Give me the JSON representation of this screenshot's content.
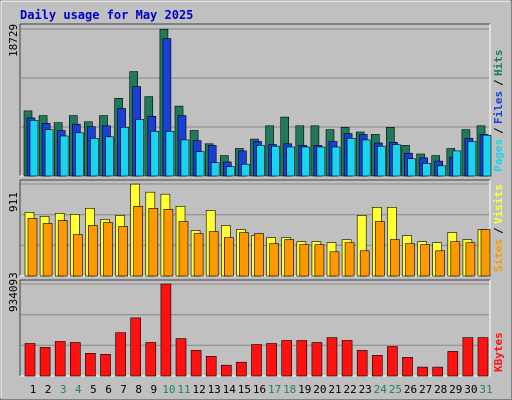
{
  "title": "Daily usage for May 2025",
  "colors": {
    "hits": "#1f7a5c",
    "files": "#1a3fd6",
    "pages": "#19d3f0",
    "visits": "#ffff33",
    "sites": "#ff9900",
    "kbytes": "#ff1111",
    "title": "#0000cc",
    "weekend": "#208060",
    "weekday": "#000000",
    "plot_bg": "#c0c0c0",
    "grid": "#888888"
  },
  "chart_data": [
    {
      "type": "bar",
      "panel": "top",
      "max_label": "18729",
      "ylim": [
        0,
        18729
      ],
      "right_labels": [
        {
          "text": "Pages",
          "color": "#19d3f0"
        },
        {
          "text": "Files",
          "color": "#1a3fd6"
        },
        {
          "text": "Hits",
          "color": "#1f7a5c"
        }
      ],
      "categories": [
        "1",
        "2",
        "3",
        "4",
        "5",
        "6",
        "7",
        "8",
        "9",
        "10",
        "11",
        "12",
        "13",
        "14",
        "15",
        "16",
        "17",
        "18",
        "19",
        "20",
        "21",
        "22",
        "23",
        "24",
        "25",
        "26",
        "27",
        "28",
        "29",
        "30",
        "31"
      ],
      "series": [
        {
          "name": "Hits",
          "values": [
            8300,
            7700,
            6800,
            7700,
            6900,
            7700,
            9900,
            13300,
            10100,
            18700,
            8900,
            5800,
            4100,
            2600,
            3500,
            4700,
            6400,
            7500,
            6400,
            6400,
            5900,
            6200,
            5600,
            5300,
            6200,
            3900,
            2800,
            2600,
            3500,
            5900,
            6400
          ]
        },
        {
          "name": "Files",
          "values": [
            7400,
            6700,
            5800,
            6600,
            6300,
            6400,
            8600,
            11400,
            7600,
            17500,
            7700,
            4500,
            3900,
            1800,
            3200,
            4400,
            4000,
            4100,
            3900,
            3900,
            4400,
            5400,
            5300,
            4200,
            4300,
            2900,
            2300,
            1900,
            2400,
            4800,
            5300
          ]
        },
        {
          "name": "Pages",
          "values": [
            7100,
            5900,
            5100,
            5500,
            4800,
            5000,
            6200,
            7200,
            5700,
            5700,
            4600,
            3100,
            1700,
            1200,
            1500,
            3900,
            3800,
            3700,
            3700,
            3700,
            3700,
            4800,
            4600,
            3800,
            4000,
            2200,
            1600,
            1300,
            3200,
            4400,
            5200
          ]
        }
      ]
    },
    {
      "type": "bar",
      "panel": "middle",
      "max_label": "911",
      "ylim": [
        0,
        911
      ],
      "right_labels": [
        {
          "text": "Sites",
          "color": "#ff9900"
        },
        {
          "text": "Visits",
          "color": "#ffff33"
        }
      ],
      "categories": [
        "1",
        "2",
        "3",
        "4",
        "5",
        "6",
        "7",
        "8",
        "9",
        "10",
        "11",
        "12",
        "13",
        "14",
        "15",
        "16",
        "17",
        "18",
        "19",
        "20",
        "21",
        "22",
        "23",
        "24",
        "25",
        "26",
        "27",
        "28",
        "29",
        "30",
        "31"
      ],
      "series": [
        {
          "name": "Visits",
          "values": [
            630,
            590,
            620,
            610,
            670,
            560,
            600,
            910,
            830,
            810,
            690,
            450,
            650,
            500,
            460,
            400,
            380,
            380,
            340,
            340,
            330,
            360,
            600,
            680,
            680,
            400,
            340,
            330,
            430,
            360,
            460
          ]
        },
        {
          "name": "Sites",
          "values": [
            570,
            520,
            550,
            410,
            500,
            530,
            490,
            690,
            670,
            660,
            540,
            420,
            440,
            380,
            430,
            420,
            320,
            360,
            310,
            310,
            240,
            330,
            250,
            540,
            360,
            320,
            310,
            250,
            340,
            330,
            460
          ]
        }
      ]
    },
    {
      "type": "bar",
      "panel": "bottom",
      "max_label": "934093",
      "ylim": [
        0,
        934093
      ],
      "right_labels": [
        {
          "text": "KBytes",
          "color": "#ff1111"
        }
      ],
      "categories": [
        "1",
        "2",
        "3",
        "4",
        "5",
        "6",
        "7",
        "8",
        "9",
        "10",
        "11",
        "12",
        "13",
        "14",
        "15",
        "16",
        "17",
        "18",
        "19",
        "20",
        "21",
        "22",
        "23",
        "24",
        "25",
        "26",
        "27",
        "28",
        "29",
        "30",
        "31"
      ],
      "series": [
        {
          "name": "KBytes",
          "values": [
            330000,
            290000,
            350000,
            340000,
            230000,
            220000,
            440000,
            590000,
            340000,
            934093,
            380000,
            260000,
            200000,
            110000,
            140000,
            320000,
            330000,
            360000,
            360000,
            340000,
            390000,
            360000,
            260000,
            210000,
            300000,
            190000,
            90000,
            90000,
            250000,
            390000,
            390000
          ]
        }
      ]
    }
  ],
  "x_labels": [
    {
      "day": "1",
      "weekend": false
    },
    {
      "day": "2",
      "weekend": false
    },
    {
      "day": "3",
      "weekend": true
    },
    {
      "day": "4",
      "weekend": true
    },
    {
      "day": "5",
      "weekend": false
    },
    {
      "day": "6",
      "weekend": false
    },
    {
      "day": "7",
      "weekend": false
    },
    {
      "day": "8",
      "weekend": false
    },
    {
      "day": "9",
      "weekend": false
    },
    {
      "day": "10",
      "weekend": true
    },
    {
      "day": "11",
      "weekend": true
    },
    {
      "day": "12",
      "weekend": false
    },
    {
      "day": "13",
      "weekend": false
    },
    {
      "day": "14",
      "weekend": false
    },
    {
      "day": "15",
      "weekend": false
    },
    {
      "day": "16",
      "weekend": false
    },
    {
      "day": "17",
      "weekend": true
    },
    {
      "day": "18",
      "weekend": true
    },
    {
      "day": "19",
      "weekend": false
    },
    {
      "day": "20",
      "weekend": false
    },
    {
      "day": "21",
      "weekend": false
    },
    {
      "day": "22",
      "weekend": false
    },
    {
      "day": "23",
      "weekend": false
    },
    {
      "day": "24",
      "weekend": true
    },
    {
      "day": "25",
      "weekend": true
    },
    {
      "day": "26",
      "weekend": false
    },
    {
      "day": "27",
      "weekend": false
    },
    {
      "day": "28",
      "weekend": false
    },
    {
      "day": "29",
      "weekend": false
    },
    {
      "day": "30",
      "weekend": false
    },
    {
      "day": "31",
      "weekend": true
    }
  ]
}
